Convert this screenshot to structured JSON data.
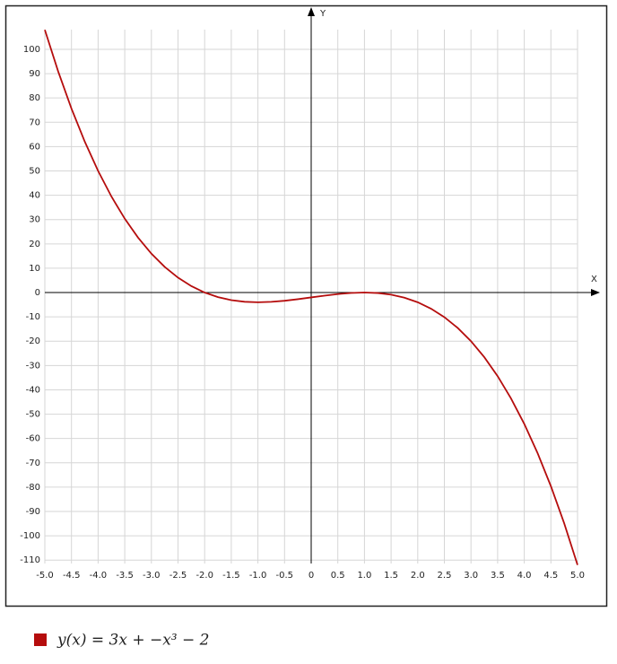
{
  "chart_data": {
    "type": "line",
    "x_label": "X",
    "y_label": "Y",
    "x": [
      -5,
      -4.75,
      -4.5,
      -4.25,
      -4,
      -3.75,
      -3.5,
      -3.25,
      -3,
      -2.75,
      -2.5,
      -2.25,
      -2,
      -1.75,
      -1.5,
      -1.25,
      -1,
      -0.75,
      -0.5,
      -0.25,
      0,
      0.25,
      0.5,
      0.75,
      1,
      1.25,
      1.5,
      1.75,
      2,
      2.25,
      2.5,
      2.75,
      3,
      3.25,
      3.5,
      3.75,
      4,
      4.25,
      4.5,
      4.75,
      5
    ],
    "series": [
      {
        "name": "y(x) = 3x + −x³ − 2",
        "color": "#b50d0d",
        "values": [
          108,
          90.921875,
          75.625,
          62.015625,
          50,
          39.484375,
          30.375,
          22.578125,
          16,
          10.546875,
          6.125,
          2.640625,
          0,
          -1.890625,
          -3.125,
          -3.796875,
          -4,
          -3.828125,
          -3.375,
          -2.734375,
          -2,
          -1.265625,
          -0.625,
          -0.171875,
          0,
          -0.203125,
          -0.875,
          -2.109375,
          -4,
          -6.640625,
          -10.125,
          -14.546875,
          -20,
          -26.578125,
          -34.375,
          -43.484375,
          -54,
          -66.015625,
          -79.625,
          -94.921875,
          -112
        ]
      }
    ],
    "xlim": [
      -5,
      5
    ],
    "ylim": [
      -111.4,
      108.1
    ],
    "xticks": [
      {
        "value": -5,
        "label": "-5.0"
      },
      {
        "value": -4.5,
        "label": "-4.5"
      },
      {
        "value": -4,
        "label": "-4.0"
      },
      {
        "value": -3.5,
        "label": "-3.5"
      },
      {
        "value": -3,
        "label": "-3.0"
      },
      {
        "value": -2.5,
        "label": "-2.5"
      },
      {
        "value": -2,
        "label": "-2.0"
      },
      {
        "value": -1.5,
        "label": "-1.5"
      },
      {
        "value": -1,
        "label": "-1.0"
      },
      {
        "value": -0.5,
        "label": "-0.5"
      },
      0,
      0.5,
      {
        "value": 1,
        "label": "1.0"
      },
      1.5,
      {
        "value": 2,
        "label": "2.0"
      },
      2.5,
      {
        "value": 3,
        "label": "3.0"
      },
      3.5,
      {
        "value": 4,
        "label": "4.0"
      },
      4.5,
      {
        "value": 5,
        "label": "5.0"
      }
    ],
    "yticks": [
      -110,
      -100,
      -90,
      -80,
      -70,
      -60,
      -50,
      -40,
      -30,
      -20,
      -10,
      0,
      10,
      20,
      30,
      40,
      50,
      60,
      70,
      80,
      90,
      100
    ],
    "grid": true
  }
}
